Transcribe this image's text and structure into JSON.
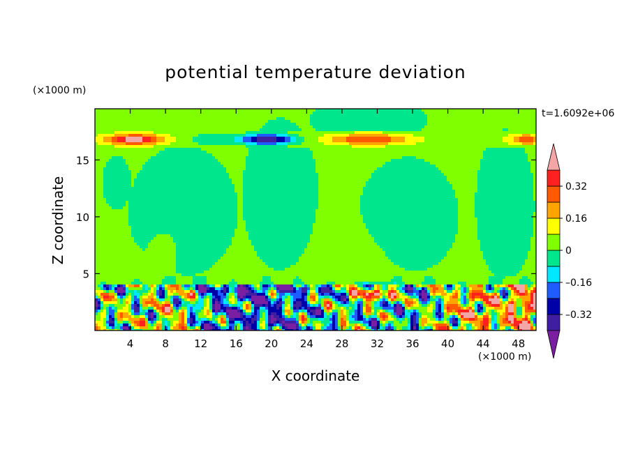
{
  "chart_data": {
    "type": "heatmap",
    "title": "potential temperature deviation",
    "xlabel": "X coordinate",
    "ylabel": "Z coordinate",
    "x_unit_label": "(×1000 m)",
    "y_unit_label": "(×1000 m)",
    "time_label": "t=1.6092e+06",
    "xlim": [
      0,
      50
    ],
    "ylim": [
      0,
      19.5
    ],
    "x_ticks": [
      4,
      8,
      12,
      16,
      20,
      24,
      28,
      32,
      36,
      40,
      44,
      48
    ],
    "y_ticks": [
      5,
      10,
      15
    ],
    "x_tick_labels": [
      "4",
      "8",
      "12",
      "16",
      "20",
      "24",
      "28",
      "32",
      "36",
      "40",
      "44",
      "48"
    ],
    "y_tick_labels": [
      "5",
      "10",
      "15"
    ],
    "colorbar": {
      "levels": [
        -0.4,
        -0.32,
        -0.24,
        -0.16,
        -0.08,
        0,
        0.08,
        0.16,
        0.24,
        0.32,
        0.4
      ],
      "labels": [
        "0.32",
        "0.16",
        "0",
        "–0.16",
        "–0.32"
      ],
      "label_values": [
        0.32,
        0.16,
        0,
        -0.16,
        -0.32
      ],
      "colors": [
        "#7a1fa2",
        "#3f1fa0",
        "#0000a8",
        "#1e5cff",
        "#00e8ff",
        "#00e68c",
        "#80ff00",
        "#ffff00",
        "#ffa500",
        "#ff5a00",
        "#ff2020",
        "#f4a6a6"
      ],
      "extend": "both"
    },
    "regions": {
      "background_level": 0.04,
      "upper_band_z": [
        16.2,
        17.4
      ],
      "boundary_layer_top_z": 4
    }
  }
}
